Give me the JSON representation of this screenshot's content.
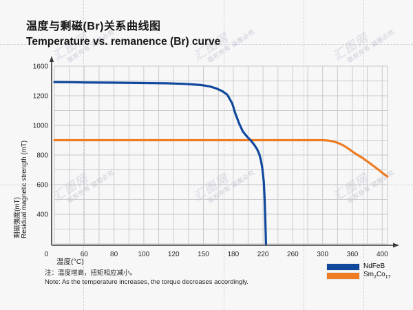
{
  "title": {
    "cn": "温度与剩磁(Br)关系曲线图",
    "en": "Temperature vs. remanence (Br) curve"
  },
  "note": {
    "cn": "注：温度增高，扭矩相应减小。",
    "en": "Note: As the temperature increases, the torque decreases accordingly."
  },
  "watermark": {
    "logo": "汇图网",
    "slogan": "版权所有 盗图必究"
  },
  "chart_data": {
    "type": "line",
    "title_cn": "温度与剩磁(Br)关系曲线图",
    "title_en": "Temperature vs. remanence (Br) curve",
    "xlabel": "温度(°C)",
    "ylabel_cn": "剩磁强度(mT)",
    "ylabel_en": "Residual magnetic strength (mT)",
    "x_ticks": [
      0,
      60,
      80,
      100,
      120,
      150,
      180,
      220,
      260,
      300,
      360,
      400
    ],
    "y_ticks": [
      1600,
      1200,
      1000,
      800,
      600,
      400,
      0
    ],
    "xlim": [
      0,
      400
    ],
    "ylim": [
      0,
      1600
    ],
    "grid": true,
    "legend_position": "bottom-right",
    "axis_color": "#3b3b3b",
    "grid_color": "#c8cacc",
    "series": [
      {
        "name": "NdFeB",
        "color": "#10489c",
        "points": [
          [
            0,
            1385
          ],
          [
            30,
            1383
          ],
          [
            60,
            1380
          ],
          [
            80,
            1377
          ],
          [
            100,
            1372
          ],
          [
            115,
            1368
          ],
          [
            130,
            1361
          ],
          [
            140,
            1353
          ],
          [
            148,
            1344
          ],
          [
            156,
            1327
          ],
          [
            163,
            1299
          ],
          [
            169,
            1262
          ],
          [
            174,
            1216
          ],
          [
            179,
            1148
          ],
          [
            183,
            1079
          ],
          [
            188,
            1012
          ],
          [
            193,
            958
          ],
          [
            199,
            922
          ],
          [
            204,
            896
          ],
          [
            208,
            870
          ],
          [
            212,
            840
          ],
          [
            215,
            806
          ],
          [
            217,
            768
          ],
          [
            219,
            715
          ],
          [
            221,
            620
          ],
          [
            222,
            520
          ],
          [
            223,
            380
          ],
          [
            224,
            0
          ]
        ]
      },
      {
        "name": "Sm2Co17",
        "name_parts": [
          "Sm",
          "2",
          "Co",
          "17"
        ],
        "color": "#ee7c23",
        "points": [
          [
            0,
            900
          ],
          [
            60,
            900
          ],
          [
            120,
            900
          ],
          [
            180,
            900
          ],
          [
            240,
            900
          ],
          [
            300,
            900
          ],
          [
            312,
            897
          ],
          [
            322,
            891
          ],
          [
            332,
            880
          ],
          [
            342,
            864
          ],
          [
            352,
            843
          ],
          [
            362,
            816
          ],
          [
            372,
            785
          ],
          [
            382,
            750
          ],
          [
            392,
            712
          ],
          [
            400,
            680
          ],
          [
            407,
            655
          ]
        ]
      }
    ]
  }
}
